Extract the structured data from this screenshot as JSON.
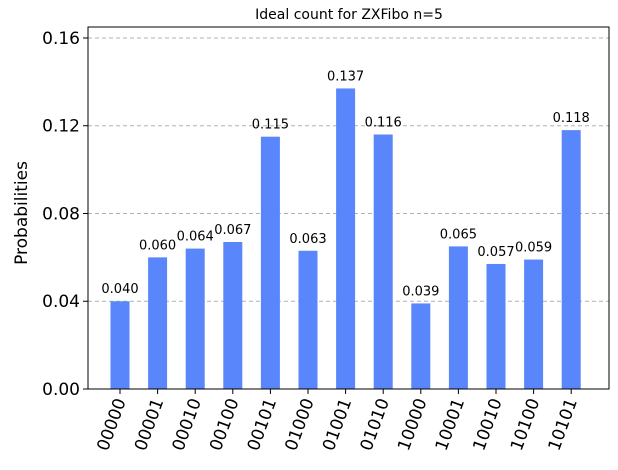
{
  "chart_data": {
    "type": "bar",
    "title": "Ideal count for ZXFibo n=5",
    "xlabel": "",
    "ylabel": "Probabilities",
    "ylim": [
      0,
      0.165
    ],
    "yticks": [
      "0.00",
      "0.04",
      "0.08",
      "0.12",
      "0.16"
    ],
    "ytick_values": [
      0,
      0.04,
      0.08,
      0.12,
      0.16
    ],
    "grid": "horizontal dashed",
    "bar_color": "#5a86fb",
    "categories": [
      "00000",
      "00001",
      "00010",
      "00100",
      "00101",
      "01000",
      "01001",
      "01010",
      "10000",
      "10001",
      "10010",
      "10100",
      "10101"
    ],
    "values": [
      0.04,
      0.06,
      0.064,
      0.067,
      0.115,
      0.063,
      0.137,
      0.116,
      0.039,
      0.065,
      0.057,
      0.059,
      0.118
    ],
    "value_labels": [
      "0.040",
      "0.060",
      "0.064",
      "0.067",
      "0.115",
      "0.063",
      "0.137",
      "0.116",
      "0.039",
      "0.065",
      "0.057",
      "0.059",
      "0.118"
    ]
  }
}
